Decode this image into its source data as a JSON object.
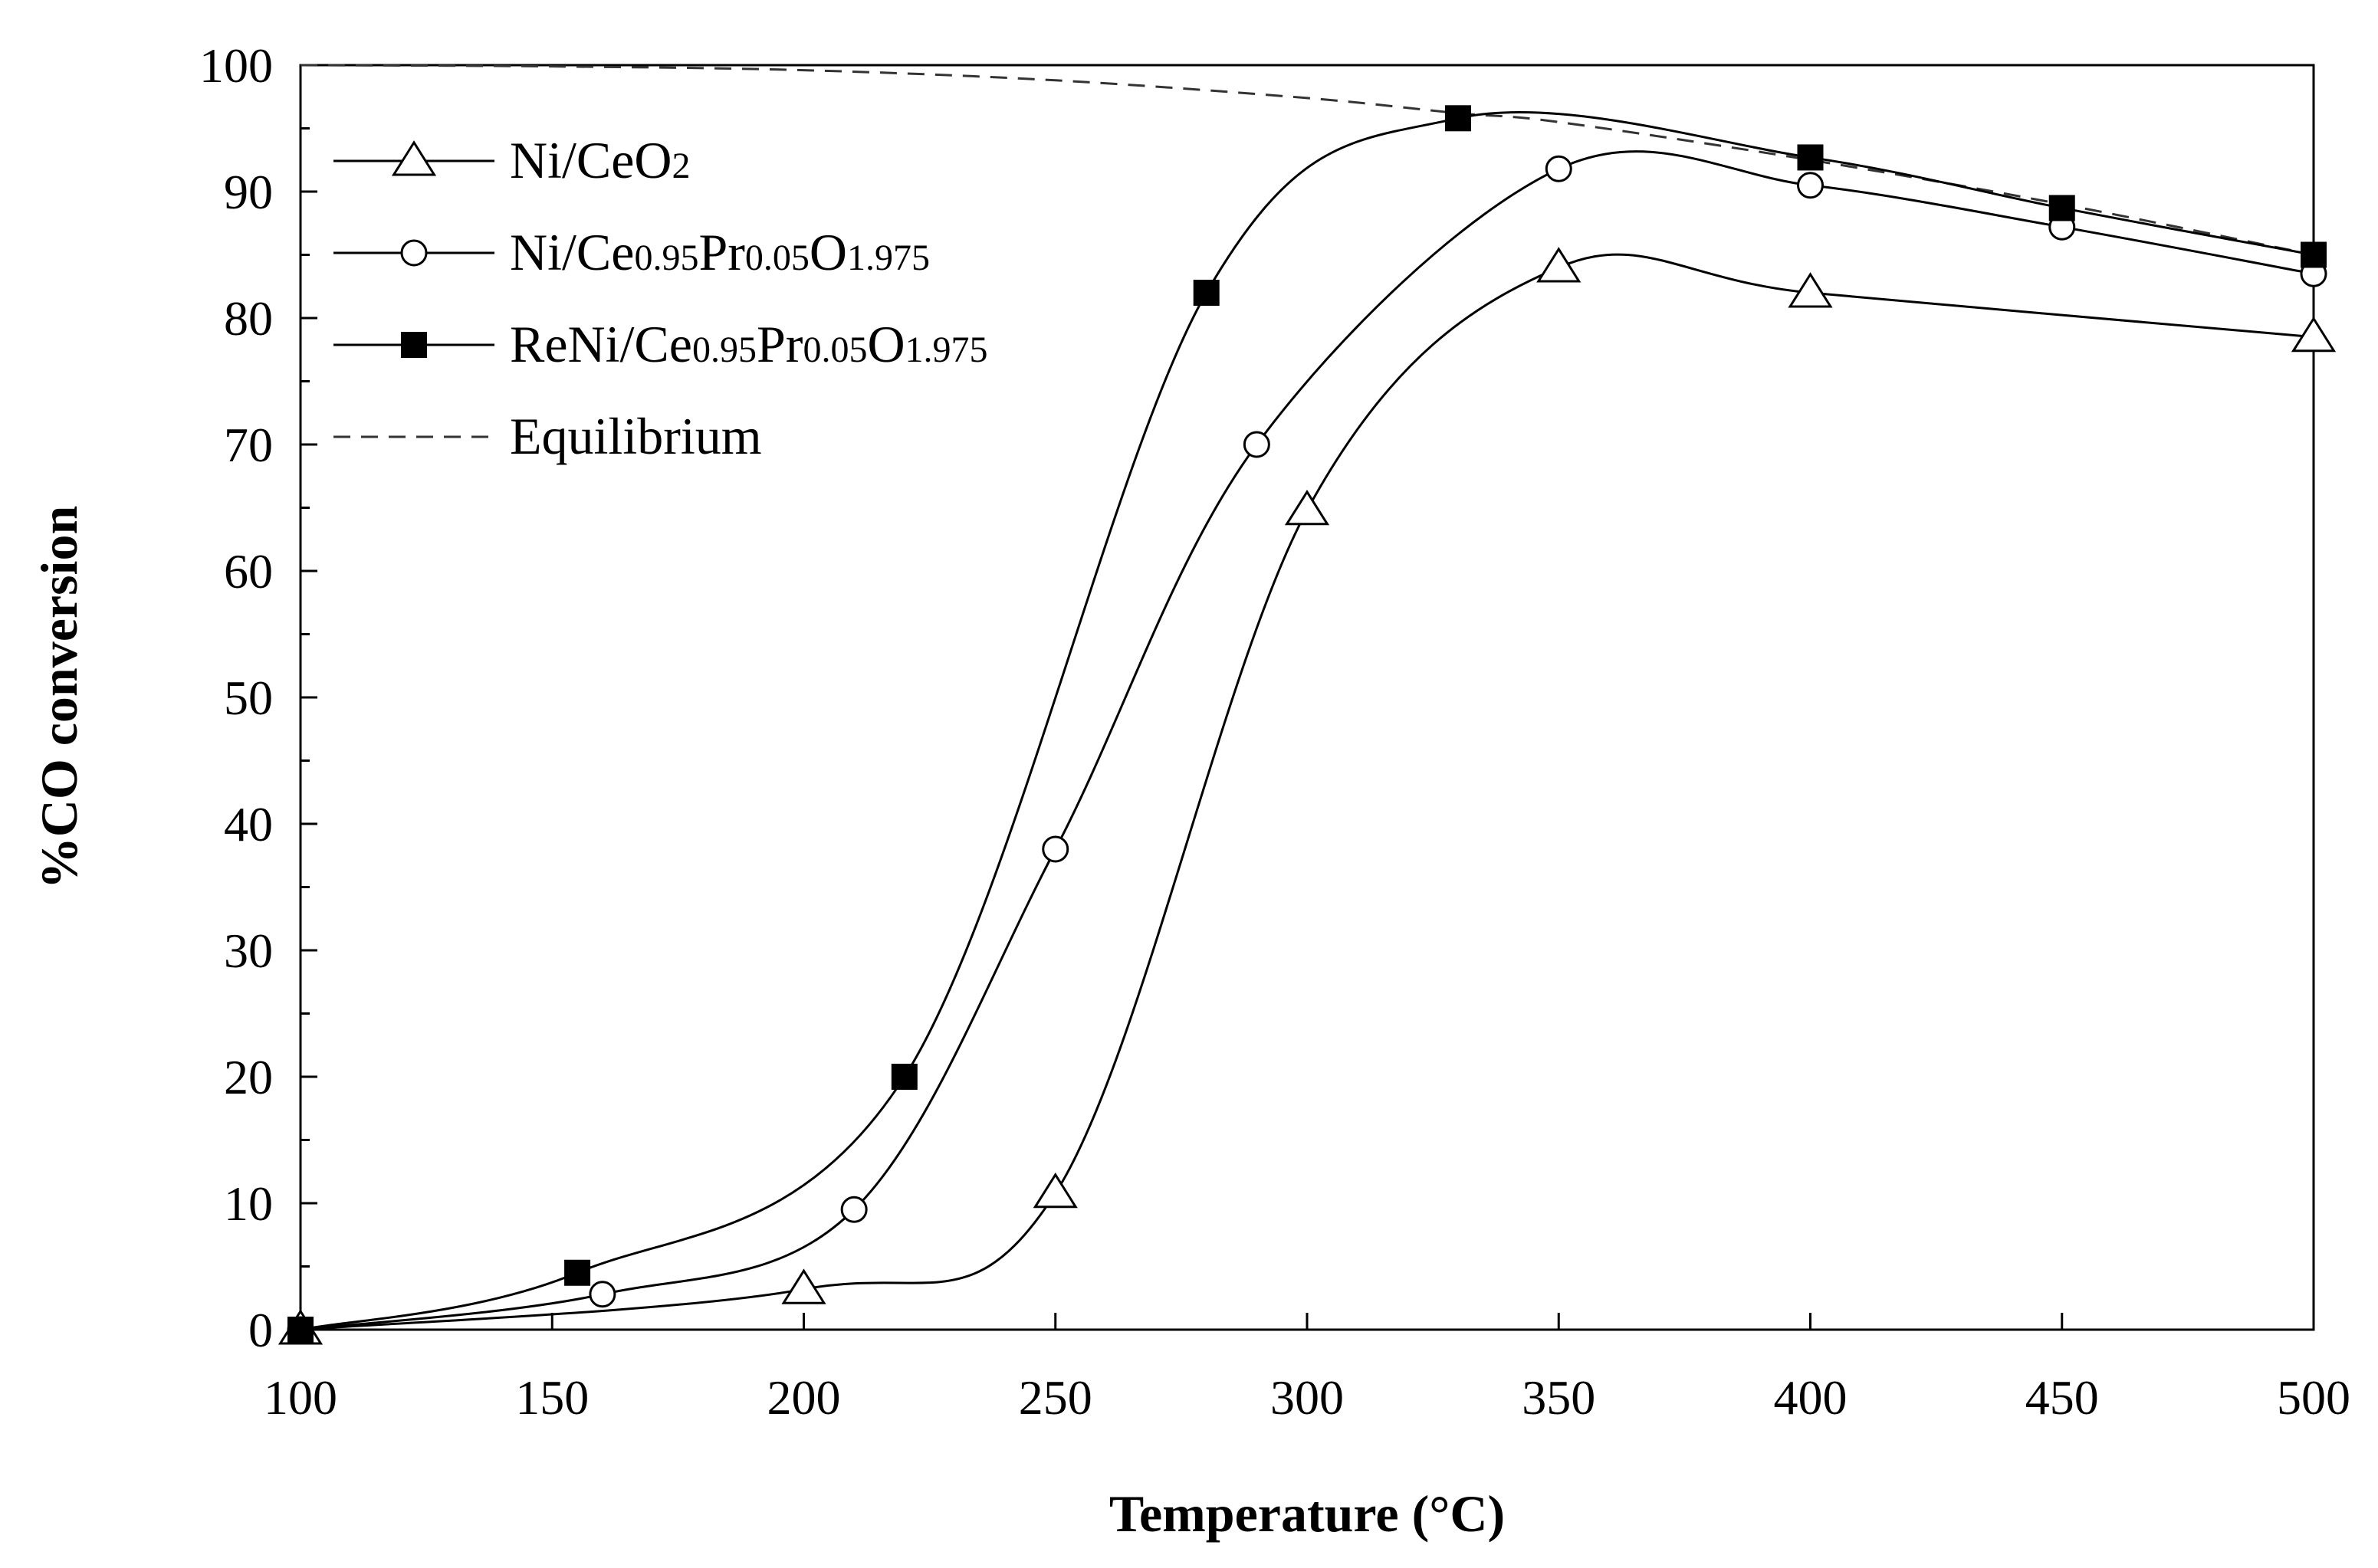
{
  "chart_data": {
    "type": "line",
    "title": "",
    "xlabel": "Temperature (°C)",
    "ylabel": "%CO conversion",
    "xlim": [
      100,
      500
    ],
    "ylim": [
      0,
      100
    ],
    "xticks": [
      100,
      150,
      200,
      250,
      300,
      350,
      400,
      450,
      500
    ],
    "yticks": [
      0,
      10,
      20,
      30,
      40,
      50,
      60,
      70,
      80,
      90,
      100
    ],
    "grid": false,
    "legend_position": "top-left",
    "series": [
      {
        "name": "Ni/CeO2",
        "legend_parts": [
          {
            "t": "Ni/CeO",
            "sub": false
          },
          {
            "t": "2",
            "sub": true
          }
        ],
        "marker": "triangle-open",
        "x": [
          100,
          200,
          250,
          300,
          350,
          400,
          500
        ],
        "y": [
          0,
          3.2,
          10.8,
          64.8,
          84,
          82,
          78.5
        ]
      },
      {
        "name": "Ni/Ce0.95Pr0.05O1.975",
        "legend_parts": [
          {
            "t": "Ni/Ce",
            "sub": false
          },
          {
            "t": "0.95",
            "sub": true
          },
          {
            "t": "Pr",
            "sub": false
          },
          {
            "t": "0.05",
            "sub": true
          },
          {
            "t": "O",
            "sub": false
          },
          {
            "t": "1.975",
            "sub": true
          }
        ],
        "marker": "circle-open",
        "x": [
          100,
          160,
          210,
          250,
          290,
          350,
          400,
          450,
          500
        ],
        "y": [
          0,
          2.8,
          9.5,
          38,
          70,
          91.8,
          90.5,
          87.2,
          83.5
        ]
      },
      {
        "name": "ReNi/Ce0.95Pr0.05O1.975",
        "legend_parts": [
          {
            "t": "ReNi/Ce",
            "sub": false
          },
          {
            "t": "0.95",
            "sub": true
          },
          {
            "t": "Pr",
            "sub": false
          },
          {
            "t": "0.05",
            "sub": true
          },
          {
            "t": "O",
            "sub": false
          },
          {
            "t": "1.975",
            "sub": true
          }
        ],
        "marker": "square-filled",
        "x": [
          100,
          155,
          220,
          280,
          330,
          400,
          450,
          500
        ],
        "y": [
          0,
          4.5,
          20,
          82,
          95.8,
          92.7,
          88.7,
          85
        ]
      },
      {
        "name": "Equilibrium",
        "legend_parts": [
          {
            "t": "Equilibrium",
            "sub": false
          }
        ],
        "marker": "none",
        "dashed": true,
        "x": [
          100,
          150,
          200,
          250,
          300,
          330,
          350,
          400,
          450,
          500
        ],
        "y": [
          100,
          99.9,
          99.6,
          98.8,
          97.4,
          96.2,
          95.5,
          92.5,
          89,
          85
        ]
      }
    ]
  }
}
